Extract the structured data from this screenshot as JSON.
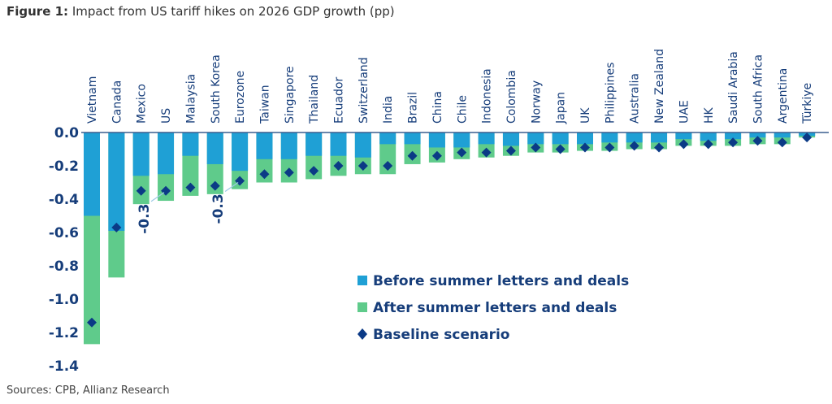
{
  "figure": {
    "label": "Figure 1:",
    "title": "Impact from US tariff hikes on 2026 GDP growth (pp)",
    "sources": "Sources: CPB, Allianz Research"
  },
  "colors": {
    "before": "#1fa0d5",
    "after": "#5fcb8b",
    "baseline": "#0b3a86",
    "text": "#163d7a",
    "leader": "#9fc9e6"
  },
  "chart_data": {
    "type": "bar",
    "title": "Impact from US tariff hikes on 2026 GDP growth (pp)",
    "xlabel": "",
    "ylabel": "",
    "ylim": [
      -1.4,
      0.0
    ],
    "yticks": [
      0.0,
      -0.2,
      -0.4,
      -0.6,
      -0.8,
      -1.0,
      -1.2,
      -1.4
    ],
    "ytick_labels": [
      "0.0",
      "-0.2",
      "-0.4",
      "-0.6",
      "-0.8",
      "-1.0",
      "-1.2",
      "-1.4"
    ],
    "grid": false,
    "legend_position": "bottom-center",
    "categories": [
      "Vietnam",
      "Canada",
      "Mexico",
      "US",
      "Malaysia",
      "South Korea",
      "Eurozone",
      "Taiwan",
      "Singapore",
      "Thailand",
      "Ecuador",
      "Switzerland",
      "India",
      "Brazil",
      "China",
      "Chile",
      "Indonesia",
      "Colombia",
      "Norway",
      "Japan",
      "UK",
      "Philippines",
      "Australia",
      "New Zealand",
      "UAE",
      "HK",
      "Saudi Arabia",
      "South Africa",
      "Argentina",
      "Türkiye"
    ],
    "series": [
      {
        "name": "Before summer letters and deals",
        "type": "bar",
        "values": [
          -0.5,
          -0.59,
          -0.26,
          -0.25,
          -0.14,
          -0.19,
          -0.23,
          -0.16,
          -0.16,
          -0.14,
          -0.14,
          -0.15,
          -0.07,
          -0.07,
          -0.09,
          -0.09,
          -0.07,
          -0.08,
          -0.07,
          -0.07,
          -0.07,
          -0.06,
          -0.06,
          -0.06,
          -0.04,
          -0.05,
          -0.04,
          -0.03,
          -0.03,
          -0.02
        ]
      },
      {
        "name": "After summer letters and deals",
        "type": "bar",
        "values": [
          -1.27,
          -0.87,
          -0.43,
          -0.41,
          -0.38,
          -0.37,
          -0.34,
          -0.3,
          -0.3,
          -0.28,
          -0.26,
          -0.25,
          -0.25,
          -0.19,
          -0.18,
          -0.16,
          -0.15,
          -0.14,
          -0.12,
          -0.12,
          -0.11,
          -0.11,
          -0.1,
          -0.1,
          -0.08,
          -0.08,
          -0.08,
          -0.07,
          -0.07,
          -0.03
        ]
      },
      {
        "name": "Baseline scenario",
        "type": "scatter",
        "marker": "diamond",
        "values": [
          -1.14,
          -0.57,
          -0.35,
          -0.35,
          -0.33,
          -0.32,
          -0.29,
          -0.25,
          -0.24,
          -0.23,
          -0.2,
          -0.2,
          -0.2,
          -0.14,
          -0.14,
          -0.12,
          -0.12,
          -0.11,
          -0.09,
          -0.1,
          -0.09,
          -0.09,
          -0.08,
          -0.09,
          -0.07,
          -0.07,
          -0.06,
          -0.05,
          -0.06,
          -0.03
        ]
      }
    ],
    "annotations": [
      {
        "category": "US",
        "text": "-0.3"
      },
      {
        "category": "Eurozone",
        "text": "-0.3"
      }
    ]
  },
  "legend": [
    {
      "label": "Before summer letters and deals",
      "marker": "square",
      "series": 0
    },
    {
      "label": "After summer letters and deals",
      "marker": "square",
      "series": 1
    },
    {
      "label": "Baseline scenario",
      "marker": "diamond",
      "series": 2
    }
  ]
}
